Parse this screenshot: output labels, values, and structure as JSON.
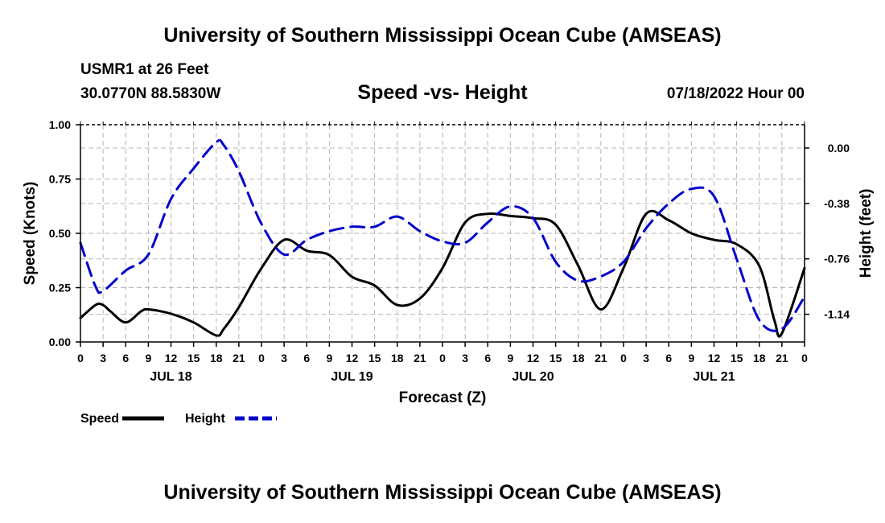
{
  "header": {
    "title": "University of Southern Mississippi Ocean Cube (AMSEAS)",
    "station": "USMR1 at 26 Feet",
    "coords": "30.0770N  88.5830W",
    "date": "07/18/2022 Hour 00"
  },
  "footer": {
    "title": "University of Southern Mississippi Ocean Cube (AMSEAS)"
  },
  "chart_data": {
    "type": "line",
    "title": "Speed -vs- Height",
    "xlabel": "Forecast (Z)",
    "ylabel": "Speed (Knots)",
    "y2label": "Height (feet)",
    "xlim": [
      0,
      96
    ],
    "ylim": [
      0,
      1
    ],
    "y2lim": [
      -1.33,
      0.16
    ],
    "grid": true,
    "yticks": [
      {
        "value": 0,
        "label": "0.00"
      },
      {
        "value": 0.25,
        "label": "0.25"
      },
      {
        "value": 0.5,
        "label": "0.50"
      },
      {
        "value": 0.75,
        "label": "0.75"
      },
      {
        "value": 1.0,
        "label": "1.00"
      }
    ],
    "y2ticks": [
      {
        "value": 0.0,
        "label": "0.00"
      },
      {
        "value": -0.38,
        "label": "-0.38"
      },
      {
        "value": -0.76,
        "label": "-0.76"
      },
      {
        "value": -1.14,
        "label": "-1.14"
      }
    ],
    "xticks": [
      {
        "value": 0,
        "label": "0"
      },
      {
        "value": 3,
        "label": "3"
      },
      {
        "value": 6,
        "label": "6"
      },
      {
        "value": 9,
        "label": "9"
      },
      {
        "value": 12,
        "label": "12"
      },
      {
        "value": 15,
        "label": "15"
      },
      {
        "value": 18,
        "label": "18"
      },
      {
        "value": 21,
        "label": "21"
      },
      {
        "value": 24,
        "label": "0"
      },
      {
        "value": 27,
        "label": "3"
      },
      {
        "value": 30,
        "label": "6"
      },
      {
        "value": 33,
        "label": "9"
      },
      {
        "value": 36,
        "label": "12"
      },
      {
        "value": 39,
        "label": "15"
      },
      {
        "value": 42,
        "label": "18"
      },
      {
        "value": 45,
        "label": "21"
      },
      {
        "value": 48,
        "label": "0"
      },
      {
        "value": 51,
        "label": "3"
      },
      {
        "value": 54,
        "label": "6"
      },
      {
        "value": 57,
        "label": "9"
      },
      {
        "value": 60,
        "label": "12"
      },
      {
        "value": 63,
        "label": "15"
      },
      {
        "value": 66,
        "label": "18"
      },
      {
        "value": 69,
        "label": "21"
      },
      {
        "value": 72,
        "label": "0"
      },
      {
        "value": 75,
        "label": "3"
      },
      {
        "value": 78,
        "label": "6"
      },
      {
        "value": 81,
        "label": "9"
      },
      {
        "value": 84,
        "label": "12"
      },
      {
        "value": 87,
        "label": "15"
      },
      {
        "value": 90,
        "label": "18"
      },
      {
        "value": 93,
        "label": "21"
      },
      {
        "value": 96,
        "label": "0"
      }
    ],
    "day_labels": [
      {
        "value": 12,
        "label": "JUL 18"
      },
      {
        "value": 36,
        "label": "JUL 19"
      },
      {
        "value": 60,
        "label": "JUL 20"
      },
      {
        "value": 84,
        "label": "JUL 21"
      }
    ],
    "series": [
      {
        "name": "Speed",
        "axis": "left",
        "color": "#000000",
        "dash": "solid",
        "x": [
          0,
          2,
          3,
          4,
          6,
          8,
          9,
          12,
          15,
          18,
          19,
          21,
          24,
          27,
          30,
          33,
          36,
          39,
          42,
          45,
          48,
          51,
          54,
          57,
          60,
          63,
          66,
          69,
          72,
          75,
          78,
          81,
          84,
          87,
          90,
          92,
          93,
          96
        ],
        "values": [
          0.11,
          0.17,
          0.17,
          0.14,
          0.09,
          0.14,
          0.15,
          0.13,
          0.09,
          0.03,
          0.06,
          0.16,
          0.34,
          0.47,
          0.42,
          0.4,
          0.3,
          0.26,
          0.17,
          0.2,
          0.34,
          0.55,
          0.59,
          0.58,
          0.57,
          0.54,
          0.35,
          0.15,
          0.34,
          0.59,
          0.56,
          0.5,
          0.47,
          0.45,
          0.35,
          0.1,
          0.04,
          0.34
        ]
      },
      {
        "name": "Height",
        "axis": "right",
        "color": "#0000cc",
        "dash": "dashed",
        "x": [
          0,
          2,
          3,
          6,
          9,
          12,
          15,
          18,
          19,
          21,
          24,
          27,
          30,
          33,
          36,
          39,
          42,
          45,
          48,
          51,
          54,
          57,
          60,
          63,
          66,
          69,
          72,
          75,
          78,
          81,
          84,
          87,
          90,
          93,
          96
        ],
        "values": [
          -0.65,
          -0.95,
          -0.98,
          -0.84,
          -0.73,
          -0.35,
          -0.14,
          0.04,
          0.02,
          -0.16,
          -0.52,
          -0.73,
          -0.63,
          -0.57,
          -0.54,
          -0.54,
          -0.47,
          -0.57,
          -0.64,
          -0.65,
          -0.51,
          -0.4,
          -0.48,
          -0.78,
          -0.91,
          -0.88,
          -0.78,
          -0.55,
          -0.38,
          -0.28,
          -0.33,
          -0.76,
          -1.18,
          -1.24,
          -1.02
        ]
      }
    ],
    "legend": [
      {
        "label": "Speed",
        "color": "#000000",
        "dash": "solid"
      },
      {
        "label": "Height",
        "color": "#0000cc",
        "dash": "dashed"
      }
    ],
    "legend_position": "bottom-left"
  }
}
